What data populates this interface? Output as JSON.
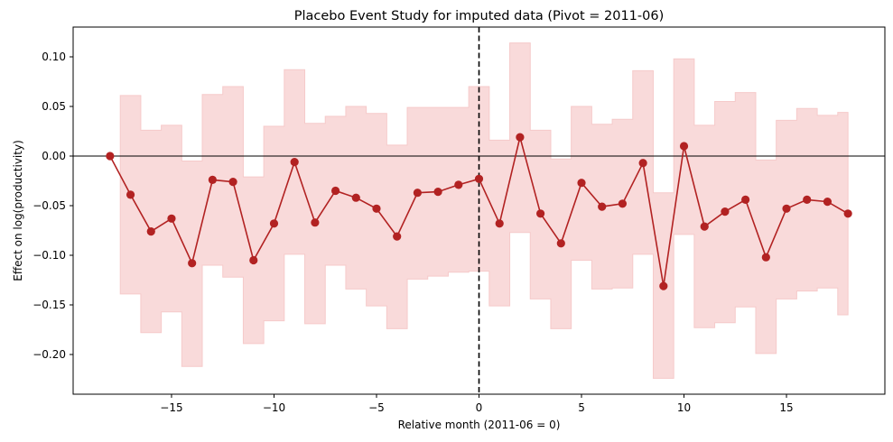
{
  "chart_data": {
    "type": "line",
    "title": "Placebo Event Study for imputed data (Pivot = 2011-06)",
    "xlabel": "Relative month (2011-06 = 0)",
    "ylabel": "Effect on log(productivity)",
    "xlim": [
      -19.8,
      19.8
    ],
    "ylim": [
      -0.24,
      0.13
    ],
    "xticks": [
      -15,
      -10,
      -5,
      0,
      5,
      10,
      15
    ],
    "xtick_labels": [
      "−15",
      "−10",
      "−5",
      "0",
      "5",
      "10",
      "15"
    ],
    "yticks": [
      0.1,
      0.05,
      0.0,
      -0.05,
      -0.1,
      -0.15,
      -0.2
    ],
    "ytick_labels": [
      "0.10",
      "0.05",
      "0.00",
      "−0.05",
      "−0.10",
      "−0.15",
      "−0.20"
    ],
    "grid": false,
    "reference_lines": {
      "horizontal_y": 0,
      "vertical_x": 0
    },
    "colors": {
      "line": "#b22222",
      "band_fill": "#f9dada",
      "band_edge": "#f6caca",
      "vline": "#000000",
      "hline": "#000000"
    },
    "x": [
      -18,
      -17,
      -16,
      -15,
      -14,
      -13,
      -12,
      -11,
      -10,
      -9,
      -8,
      -7,
      -6,
      -5,
      -4,
      -3,
      -2,
      -1,
      0,
      1,
      2,
      3,
      4,
      5,
      6,
      7,
      8,
      9,
      10,
      11,
      12,
      13,
      14,
      15,
      16,
      17,
      18
    ],
    "estimate": [
      0.0,
      -0.039,
      -0.076,
      -0.063,
      -0.108,
      -0.024,
      -0.026,
      -0.105,
      -0.068,
      -0.006,
      -0.067,
      -0.035,
      -0.042,
      -0.053,
      -0.081,
      -0.037,
      -0.036,
      -0.029,
      -0.023,
      -0.068,
      0.019,
      -0.058,
      -0.088,
      -0.027,
      -0.051,
      -0.048,
      -0.007,
      -0.131,
      0.01,
      -0.071,
      -0.056,
      -0.044,
      -0.102,
      -0.053,
      -0.044,
      -0.046,
      -0.058
    ],
    "ci_upper": [
      0.0,
      0.061,
      0.026,
      0.031,
      -0.005,
      0.062,
      0.07,
      -0.021,
      0.03,
      0.087,
      0.033,
      0.04,
      0.05,
      0.043,
      0.011,
      0.049,
      0.049,
      0.049,
      0.07,
      0.016,
      0.114,
      0.026,
      -0.003,
      0.05,
      0.032,
      0.037,
      0.086,
      -0.037,
      0.098,
      0.031,
      0.055,
      0.064,
      -0.004,
      0.036,
      0.048,
      0.041,
      0.044
    ],
    "ci_lower": [
      0.0,
      -0.139,
      -0.178,
      -0.157,
      -0.212,
      -0.11,
      -0.122,
      -0.189,
      -0.166,
      -0.099,
      -0.169,
      -0.11,
      -0.134,
      -0.151,
      -0.174,
      -0.124,
      -0.121,
      -0.117,
      -0.116,
      -0.151,
      -0.077,
      -0.144,
      -0.174,
      -0.105,
      -0.134,
      -0.133,
      -0.099,
      -0.224,
      -0.079,
      -0.173,
      -0.168,
      -0.152,
      -0.199,
      -0.144,
      -0.136,
      -0.133,
      -0.16
    ]
  }
}
